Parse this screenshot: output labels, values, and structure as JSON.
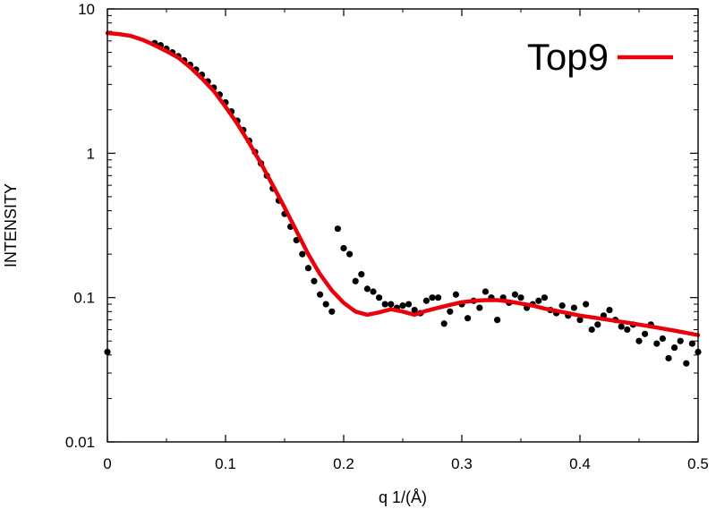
{
  "chart_data": {
    "type": "scatter",
    "title": "",
    "xlabel": "q 1/(Å)",
    "ylabel": "INTENSITY",
    "xlim": [
      0,
      0.5
    ],
    "ylim": [
      0.01,
      10
    ],
    "yscale": "log",
    "grid": false,
    "legend_position": "top-right",
    "x_ticks": [
      0,
      0.1,
      0.2,
      0.3,
      0.4,
      0.5
    ],
    "x_tick_labels": [
      "0",
      "0.1",
      "0.2",
      "0.3",
      "0.4",
      "0.5"
    ],
    "y_ticks": [
      0.01,
      0.1,
      1,
      10
    ],
    "y_tick_labels": [
      "0.01",
      "0.1",
      "1",
      "10"
    ],
    "series": [
      {
        "kind": "scatter",
        "color": "#000000",
        "points": [
          [
            0.0,
            0.042
          ],
          [
            0.04,
            5.8
          ],
          [
            0.045,
            5.6
          ],
          [
            0.05,
            5.3
          ],
          [
            0.055,
            5.0
          ],
          [
            0.06,
            4.7
          ],
          [
            0.065,
            4.4
          ],
          [
            0.07,
            4.1
          ],
          [
            0.075,
            3.8
          ],
          [
            0.08,
            3.5
          ],
          [
            0.085,
            3.15
          ],
          [
            0.09,
            2.85
          ],
          [
            0.095,
            2.55
          ],
          [
            0.1,
            2.25
          ],
          [
            0.105,
            1.95
          ],
          [
            0.11,
            1.68
          ],
          [
            0.115,
            1.45
          ],
          [
            0.12,
            1.22
          ],
          [
            0.125,
            1.02
          ],
          [
            0.13,
            0.85
          ],
          [
            0.135,
            0.7
          ],
          [
            0.14,
            0.57
          ],
          [
            0.145,
            0.47
          ],
          [
            0.15,
            0.38
          ],
          [
            0.155,
            0.31
          ],
          [
            0.16,
            0.25
          ],
          [
            0.165,
            0.2
          ],
          [
            0.17,
            0.16
          ],
          [
            0.175,
            0.13
          ],
          [
            0.18,
            0.105
          ],
          [
            0.185,
            0.09
          ],
          [
            0.19,
            0.08
          ],
          [
            0.195,
            0.3
          ],
          [
            0.2,
            0.22
          ],
          [
            0.205,
            0.2
          ],
          [
            0.21,
            0.13
          ],
          [
            0.215,
            0.145
          ],
          [
            0.22,
            0.115
          ],
          [
            0.225,
            0.11
          ],
          [
            0.23,
            0.1
          ],
          [
            0.235,
            0.09
          ],
          [
            0.24,
            0.09
          ],
          [
            0.245,
            0.085
          ],
          [
            0.25,
            0.088
          ],
          [
            0.255,
            0.09
          ],
          [
            0.26,
            0.082
          ],
          [
            0.265,
            0.078
          ],
          [
            0.27,
            0.095
          ],
          [
            0.275,
            0.1
          ],
          [
            0.28,
            0.1
          ],
          [
            0.285,
            0.066
          ],
          [
            0.29,
            0.08
          ],
          [
            0.295,
            0.105
          ],
          [
            0.3,
            0.09
          ],
          [
            0.305,
            0.072
          ],
          [
            0.31,
            0.095
          ],
          [
            0.315,
            0.085
          ],
          [
            0.32,
            0.11
          ],
          [
            0.325,
            0.1
          ],
          [
            0.33,
            0.07
          ],
          [
            0.335,
            0.1
          ],
          [
            0.34,
            0.092
          ],
          [
            0.345,
            0.105
          ],
          [
            0.35,
            0.1
          ],
          [
            0.355,
            0.085
          ],
          [
            0.36,
            0.09
          ],
          [
            0.365,
            0.095
          ],
          [
            0.37,
            0.1
          ],
          [
            0.375,
            0.082
          ],
          [
            0.38,
            0.078
          ],
          [
            0.385,
            0.088
          ],
          [
            0.39,
            0.075
          ],
          [
            0.395,
            0.085
          ],
          [
            0.4,
            0.07
          ],
          [
            0.405,
            0.09
          ],
          [
            0.41,
            0.06
          ],
          [
            0.415,
            0.065
          ],
          [
            0.42,
            0.075
          ],
          [
            0.425,
            0.082
          ],
          [
            0.43,
            0.07
          ],
          [
            0.435,
            0.063
          ],
          [
            0.44,
            0.06
          ],
          [
            0.445,
            0.065
          ],
          [
            0.45,
            0.05
          ],
          [
            0.455,
            0.056
          ],
          [
            0.46,
            0.065
          ],
          [
            0.465,
            0.048
          ],
          [
            0.47,
            0.052
          ],
          [
            0.475,
            0.038
          ],
          [
            0.48,
            0.045
          ],
          [
            0.485,
            0.05
          ],
          [
            0.49,
            0.035
          ],
          [
            0.495,
            0.048
          ],
          [
            0.5,
            0.042
          ]
        ]
      },
      {
        "name": "Top9",
        "kind": "line",
        "color": "#e8000b",
        "points": [
          [
            0.0,
            6.8
          ],
          [
            0.01,
            6.7
          ],
          [
            0.02,
            6.5
          ],
          [
            0.03,
            6.1
          ],
          [
            0.04,
            5.6
          ],
          [
            0.05,
            5.1
          ],
          [
            0.06,
            4.6
          ],
          [
            0.07,
            3.95
          ],
          [
            0.08,
            3.3
          ],
          [
            0.09,
            2.7
          ],
          [
            0.1,
            2.1
          ],
          [
            0.11,
            1.6
          ],
          [
            0.12,
            1.18
          ],
          [
            0.13,
            0.85
          ],
          [
            0.14,
            0.6
          ],
          [
            0.15,
            0.42
          ],
          [
            0.16,
            0.29
          ],
          [
            0.17,
            0.2
          ],
          [
            0.18,
            0.145
          ],
          [
            0.19,
            0.112
          ],
          [
            0.2,
            0.092
          ],
          [
            0.21,
            0.08
          ],
          [
            0.22,
            0.076
          ],
          [
            0.23,
            0.079
          ],
          [
            0.24,
            0.083
          ],
          [
            0.25,
            0.08
          ],
          [
            0.26,
            0.076
          ],
          [
            0.27,
            0.081
          ],
          [
            0.28,
            0.085
          ],
          [
            0.29,
            0.089
          ],
          [
            0.3,
            0.093
          ],
          [
            0.31,
            0.095
          ],
          [
            0.32,
            0.096
          ],
          [
            0.33,
            0.096
          ],
          [
            0.34,
            0.094
          ],
          [
            0.35,
            0.091
          ],
          [
            0.36,
            0.088
          ],
          [
            0.37,
            0.084
          ],
          [
            0.38,
            0.081
          ],
          [
            0.39,
            0.078
          ],
          [
            0.4,
            0.075
          ],
          [
            0.41,
            0.073
          ],
          [
            0.42,
            0.071
          ],
          [
            0.43,
            0.069
          ],
          [
            0.44,
            0.067
          ],
          [
            0.45,
            0.065
          ],
          [
            0.46,
            0.063
          ],
          [
            0.47,
            0.061
          ],
          [
            0.48,
            0.059
          ],
          [
            0.49,
            0.057
          ],
          [
            0.5,
            0.055
          ]
        ]
      }
    ]
  }
}
